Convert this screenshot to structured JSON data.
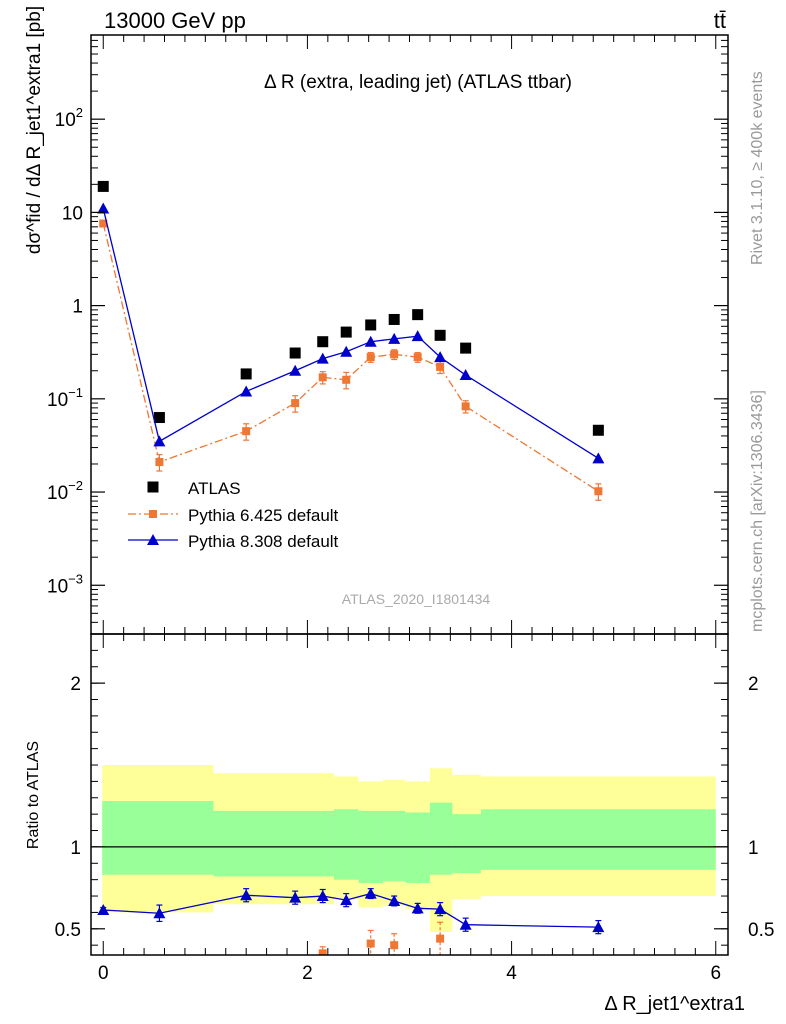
{
  "header": {
    "energy_label": "13000 GeV pp",
    "process_label": "tt̄"
  },
  "side_labels": {
    "rivet": "Rivet 3.1.10, ≥ 400k events",
    "mcplots": "mcplots.cern.ch [arXiv:1306.3436]"
  },
  "chart_data": [
    {
      "type": "scatter",
      "title": "Δ R (extra, leading jet) (ATLAS ttbar)",
      "watermark": "ATLAS_2020_I1801434",
      "ylabel": "dσ^fid / dΔ R_jet1^extra1 [pb]",
      "yscale": "log",
      "xlim": [
        -0.12,
        6.12
      ],
      "ylim": [
        0.0003,
        800
      ],
      "yticks": [
        {
          "v": 0.001,
          "label": "10^-3"
        },
        {
          "v": 0.01,
          "label": "10^-2"
        },
        {
          "v": 0.1,
          "label": "10^-1"
        },
        {
          "v": 1,
          "label": "1"
        },
        {
          "v": 10,
          "label": "10"
        },
        {
          "v": 100,
          "label": "10^2"
        }
      ],
      "legend_position": "lower-left",
      "series": [
        {
          "name": "ATLAS",
          "marker": "square",
          "color": "#000000",
          "x": [
            0.0,
            0.55,
            1.4,
            1.88,
            2.15,
            2.38,
            2.62,
            2.85,
            3.08,
            3.3,
            3.55,
            4.85
          ],
          "y": [
            19,
            0.063,
            0.185,
            0.31,
            0.41,
            0.52,
            0.62,
            0.71,
            0.8,
            0.48,
            0.35,
            0.046
          ]
        },
        {
          "name": "Pythia 6.425 default",
          "marker": "square-small",
          "line": "dashdot",
          "color": "#ee7733",
          "x": [
            0.0,
            0.55,
            1.4,
            1.88,
            2.15,
            2.38,
            2.62,
            2.85,
            3.08,
            3.3,
            3.55,
            4.85
          ],
          "y": [
            7.6,
            0.021,
            0.045,
            0.09,
            0.17,
            0.16,
            0.28,
            0.3,
            0.28,
            0.22,
            0.083,
            0.0102
          ],
          "err_frac": [
            0.05,
            0.2,
            0.2,
            0.2,
            0.15,
            0.2,
            0.12,
            0.12,
            0.12,
            0.15,
            0.15,
            0.2
          ]
        },
        {
          "name": "Pythia 8.308 default",
          "marker": "triangle",
          "line": "solid",
          "color": "#0000cc",
          "x": [
            0.0,
            0.55,
            1.4,
            1.88,
            2.15,
            2.38,
            2.62,
            2.85,
            3.08,
            3.3,
            3.55,
            4.85
          ],
          "y": [
            11,
            0.035,
            0.12,
            0.2,
            0.27,
            0.32,
            0.41,
            0.44,
            0.47,
            0.28,
            0.18,
            0.023
          ]
        }
      ]
    },
    {
      "type": "line",
      "ylabel": "Ratio to ATLAS",
      "xlabel": "Δ R_jet1^extra1",
      "xlim": [
        -0.12,
        6.12
      ],
      "ylim": [
        0.34,
        2.3
      ],
      "xticks": [
        0,
        2,
        4,
        6
      ],
      "yticks": [
        0.5,
        1,
        2
      ],
      "bands": [
        {
          "x0": -0.01,
          "x1": 1.08,
          "yellow": [
            0.6,
            1.5
          ],
          "green": [
            0.83,
            1.28
          ]
        },
        {
          "x0": 1.08,
          "x1": 2.26,
          "yellow": [
            0.65,
            1.45
          ],
          "green": [
            0.82,
            1.22
          ]
        },
        {
          "x0": 2.26,
          "x1": 2.5,
          "yellow": [
            0.68,
            1.43
          ],
          "green": [
            0.8,
            1.23
          ]
        },
        {
          "x0": 2.5,
          "x1": 2.74,
          "yellow": [
            0.63,
            1.4
          ],
          "green": [
            0.78,
            1.22
          ]
        },
        {
          "x0": 2.74,
          "x1": 2.96,
          "yellow": [
            0.64,
            1.41
          ],
          "green": [
            0.79,
            1.22
          ]
        },
        {
          "x0": 2.96,
          "x1": 3.2,
          "yellow": [
            0.62,
            1.4
          ],
          "green": [
            0.78,
            1.21
          ]
        },
        {
          "x0": 3.2,
          "x1": 3.42,
          "yellow": [
            0.48,
            1.48
          ],
          "green": [
            0.83,
            1.27
          ]
        },
        {
          "x0": 3.42,
          "x1": 3.7,
          "yellow": [
            0.68,
            1.44
          ],
          "green": [
            0.84,
            1.2
          ]
        },
        {
          "x0": 3.7,
          "x1": 6.0,
          "yellow": [
            0.7,
            1.43
          ],
          "green": [
            0.86,
            1.23
          ]
        }
      ],
      "series": [
        {
          "name": "Pythia 8.308 default",
          "color": "#0000cc",
          "x": [
            0.0,
            0.55,
            1.4,
            1.88,
            2.15,
            2.38,
            2.62,
            2.85,
            3.08,
            3.3,
            3.55,
            4.85
          ],
          "y": [
            0.615,
            0.595,
            0.705,
            0.69,
            0.7,
            0.675,
            0.715,
            0.67,
            0.625,
            0.62,
            0.525,
            0.51
          ],
          "err": [
            0.015,
            0.05,
            0.04,
            0.04,
            0.04,
            0.04,
            0.03,
            0.03,
            0.03,
            0.04,
            0.04,
            0.04
          ]
        },
        {
          "name": "Pythia 6.425 default",
          "color": "#ee7733",
          "x": [
            2.15,
            2.62,
            2.85,
            3.3
          ],
          "y": [
            0.35,
            0.41,
            0.4,
            0.44
          ],
          "err": [
            0.04,
            0.08,
            0.07,
            0.1
          ]
        }
      ]
    }
  ]
}
